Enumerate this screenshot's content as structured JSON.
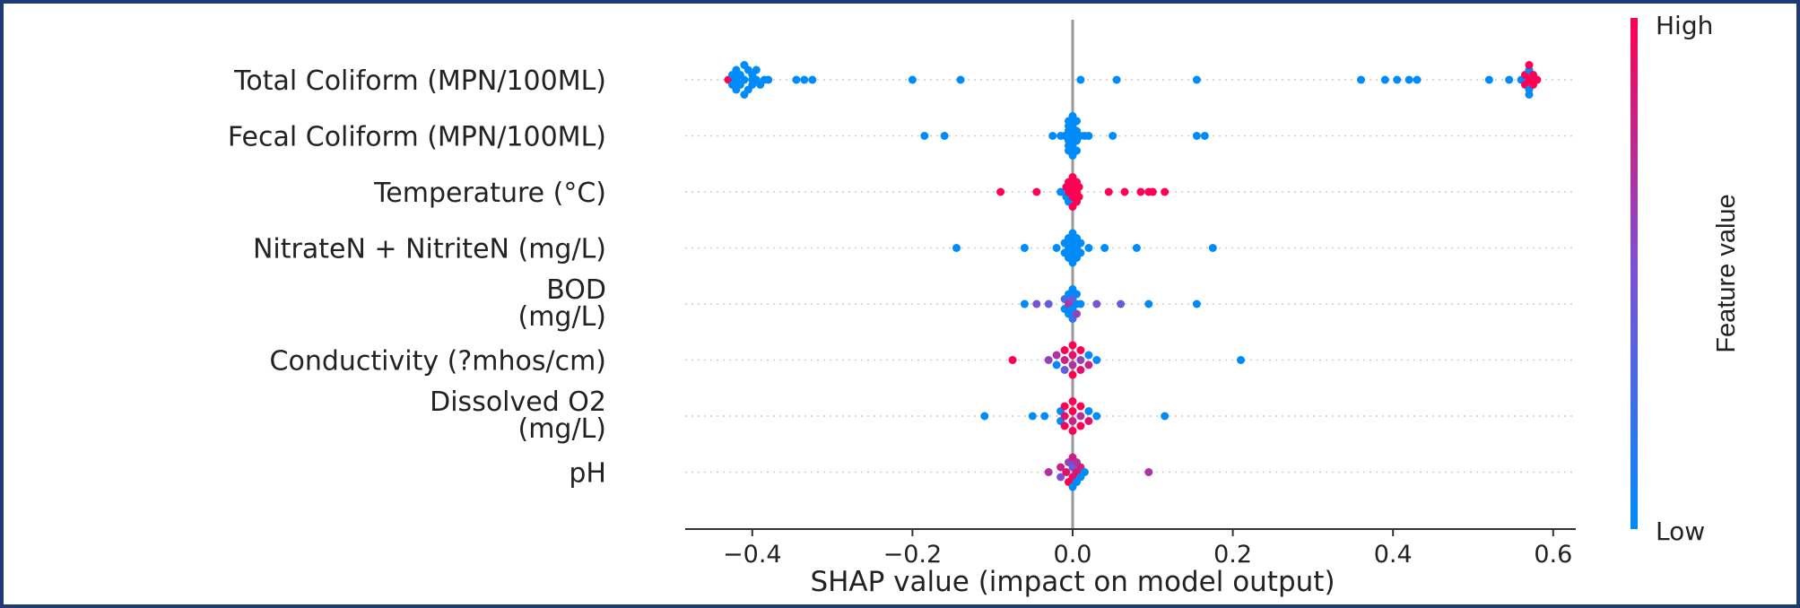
{
  "chart_data": {
    "type": "scatter",
    "subtype": "shap-beeswarm",
    "xlabel": "SHAP value (impact on model output)",
    "xlim": [
      -0.49,
      0.625
    ],
    "xticks": [
      -0.4,
      -0.2,
      0.0,
      0.2,
      0.4,
      0.6
    ],
    "xtick_labels": [
      "−0.4",
      "−0.2",
      "0.0",
      "0.2",
      "0.4",
      "0.6"
    ],
    "colorbar": {
      "title": "Feature value",
      "high_label": "High",
      "low_label": "Low",
      "low_color": "#008bfb",
      "high_color": "#ff0052"
    },
    "features": [
      {
        "name": "Total Coliform (MPN/100ML)",
        "lines": [
          "Total Coliform (MPN/100ML)"
        ],
        "points": [
          [
            -0.43,
            0.0,
            1
          ],
          [
            -0.425,
            -1.0,
            0
          ],
          [
            -0.425,
            1.0,
            0
          ],
          [
            -0.42,
            0.0,
            0
          ],
          [
            -0.42,
            -2.0,
            0
          ],
          [
            -0.42,
            2.0,
            0
          ],
          [
            -0.415,
            -1.0,
            0
          ],
          [
            -0.415,
            1.0,
            0
          ],
          [
            -0.41,
            0.0,
            0
          ],
          [
            -0.41,
            -3.0,
            0
          ],
          [
            -0.41,
            3.0,
            0
          ],
          [
            -0.405,
            -2.0,
            0
          ],
          [
            -0.405,
            2.0,
            0
          ],
          [
            -0.4,
            0.0,
            0
          ],
          [
            -0.4,
            -1.0,
            0
          ],
          [
            -0.4,
            1.0,
            0
          ],
          [
            -0.395,
            0.0,
            0
          ],
          [
            -0.395,
            -2.0,
            0
          ],
          [
            -0.39,
            1.0,
            0
          ],
          [
            -0.385,
            0.0,
            0
          ],
          [
            -0.38,
            0.0,
            0
          ],
          [
            -0.345,
            0.0,
            0
          ],
          [
            -0.335,
            0.0,
            0
          ],
          [
            -0.325,
            0.0,
            0
          ],
          [
            -0.2,
            0.0,
            0
          ],
          [
            -0.14,
            0.0,
            0
          ],
          [
            0.01,
            0.0,
            0
          ],
          [
            0.055,
            0.0,
            0
          ],
          [
            0.155,
            0.0,
            0
          ],
          [
            0.36,
            0.0,
            0
          ],
          [
            0.39,
            0.0,
            0
          ],
          [
            0.405,
            0.0,
            0
          ],
          [
            0.42,
            0.0,
            0
          ],
          [
            0.43,
            0.0,
            0
          ],
          [
            0.52,
            0.0,
            0
          ],
          [
            0.545,
            0.0,
            0
          ],
          [
            0.56,
            0.0,
            0
          ],
          [
            0.565,
            -1.0,
            1
          ],
          [
            0.565,
            1.0,
            1
          ],
          [
            0.57,
            0.0,
            1
          ],
          [
            0.57,
            -2.0,
            0
          ],
          [
            0.57,
            2.0,
            0
          ],
          [
            0.57,
            -3.0,
            1
          ],
          [
            0.57,
            3.0,
            0
          ],
          [
            0.575,
            -1.0,
            1
          ],
          [
            0.575,
            1.0,
            1
          ],
          [
            0.58,
            0.0,
            1
          ]
        ]
      },
      {
        "name": "Fecal Coliform (MPN/100ML)",
        "lines": [
          "Fecal Coliform (MPN/100ML)"
        ],
        "points": [
          [
            -0.185,
            0.0,
            0
          ],
          [
            -0.16,
            0.0,
            0
          ],
          [
            -0.025,
            0.0,
            0
          ],
          [
            -0.015,
            0.0,
            0
          ],
          [
            -0.01,
            0.0,
            0
          ],
          [
            -0.005,
            -3.0,
            0
          ],
          [
            -0.005,
            -2.0,
            0
          ],
          [
            -0.005,
            -1.0,
            0
          ],
          [
            -0.005,
            0.0,
            0
          ],
          [
            -0.005,
            1.0,
            0
          ],
          [
            -0.005,
            2.0,
            0
          ],
          [
            -0.005,
            3.0,
            0
          ],
          [
            0.0,
            -4.0,
            0
          ],
          [
            0.0,
            -2.0,
            0
          ],
          [
            0.0,
            0.0,
            0
          ],
          [
            0.0,
            2.0,
            0
          ],
          [
            0.0,
            4.0,
            0
          ],
          [
            0.005,
            -3.0,
            0
          ],
          [
            0.005,
            -1.0,
            0
          ],
          [
            0.005,
            1.0,
            0
          ],
          [
            0.005,
            3.0,
            0
          ],
          [
            0.01,
            0.0,
            0
          ],
          [
            0.015,
            0.0,
            0
          ],
          [
            0.02,
            0.0,
            0
          ],
          [
            0.05,
            0.0,
            0
          ],
          [
            0.155,
            0.0,
            0
          ],
          [
            0.165,
            0.0,
            0
          ]
        ]
      },
      {
        "name": "Temperature (°C)",
        "lines": [
          "Temperature (°C)"
        ],
        "points": [
          [
            -0.09,
            0.0,
            1
          ],
          [
            -0.045,
            0.0,
            1
          ],
          [
            -0.015,
            0.0,
            0
          ],
          [
            -0.008,
            -1.0,
            1
          ],
          [
            -0.008,
            1.0,
            0
          ],
          [
            -0.005,
            -2.0,
            1
          ],
          [
            -0.005,
            0.0,
            1
          ],
          [
            -0.005,
            2.0,
            0
          ],
          [
            0.0,
            -3.0,
            1
          ],
          [
            0.0,
            -1.0,
            1
          ],
          [
            0.0,
            1.0,
            1
          ],
          [
            0.0,
            3.0,
            1
          ],
          [
            0.005,
            -2.0,
            1
          ],
          [
            0.005,
            0.0,
            1
          ],
          [
            0.005,
            2.0,
            1
          ],
          [
            0.008,
            -1.0,
            1
          ],
          [
            0.008,
            1.0,
            1
          ],
          [
            0.045,
            0.0,
            1
          ],
          [
            0.065,
            0.0,
            1
          ],
          [
            0.085,
            0.0,
            1
          ],
          [
            0.095,
            0.0,
            1
          ],
          [
            0.1,
            0.0,
            1
          ],
          [
            0.115,
            0.0,
            1
          ]
        ]
      },
      {
        "name": "NitrateN + NitriteN (mg/L)",
        "lines": [
          "NitrateN + NitriteN (mg/L)"
        ],
        "points": [
          [
            -0.145,
            0.0,
            0
          ],
          [
            -0.06,
            0.0,
            0
          ],
          [
            -0.02,
            0.0,
            0
          ],
          [
            -0.01,
            -1.0,
            0
          ],
          [
            -0.01,
            1.0,
            0
          ],
          [
            -0.005,
            -2.0,
            0
          ],
          [
            -0.005,
            0.0,
            0
          ],
          [
            -0.005,
            2.0,
            0
          ],
          [
            0.0,
            -3.0,
            0
          ],
          [
            0.0,
            -1.0,
            0
          ],
          [
            0.0,
            1.0,
            0
          ],
          [
            0.0,
            3.0,
            0
          ],
          [
            0.005,
            -2.0,
            0
          ],
          [
            0.005,
            0.0,
            0
          ],
          [
            0.005,
            2.0,
            0
          ],
          [
            0.01,
            -1.0,
            0
          ],
          [
            0.01,
            1.0,
            0
          ],
          [
            0.02,
            0.0,
            0
          ],
          [
            0.04,
            0.0,
            0
          ],
          [
            0.08,
            0.0,
            0
          ],
          [
            0.175,
            0.0,
            0
          ]
        ]
      },
      {
        "name": "BOD (mg/L)",
        "lines": [
          "BOD",
          "(mg/L)"
        ],
        "points": [
          [
            -0.06,
            0.0,
            0
          ],
          [
            -0.045,
            0.0,
            0.5
          ],
          [
            -0.03,
            0.0,
            0.4
          ],
          [
            -0.01,
            -1.0,
            0.3
          ],
          [
            -0.01,
            1.0,
            0
          ],
          [
            -0.005,
            -2.0,
            0
          ],
          [
            -0.005,
            0.0,
            0.7
          ],
          [
            -0.005,
            2.0,
            0
          ],
          [
            0.0,
            -3.0,
            0
          ],
          [
            0.0,
            -1.0,
            0.5
          ],
          [
            0.0,
            1.0,
            0
          ],
          [
            0.0,
            3.0,
            0.2
          ],
          [
            0.005,
            -2.0,
            0
          ],
          [
            0.005,
            0.0,
            0
          ],
          [
            0.005,
            2.0,
            0.6
          ],
          [
            0.01,
            0.0,
            0
          ],
          [
            0.03,
            0.0,
            0.5
          ],
          [
            0.06,
            0.0,
            0.4
          ],
          [
            0.095,
            0.0,
            0
          ],
          [
            0.155,
            0.0,
            0
          ]
        ]
      },
      {
        "name": "Conductivity (?mhos/cm)",
        "lines": [
          "Conductivity (?mhos/cm)"
        ],
        "points": [
          [
            -0.075,
            0.0,
            1
          ],
          [
            -0.03,
            0.0,
            0.6
          ],
          [
            -0.02,
            -1.0,
            0.7
          ],
          [
            -0.02,
            1.0,
            0
          ],
          [
            -0.01,
            -2.0,
            1
          ],
          [
            -0.01,
            0.0,
            0.8
          ],
          [
            -0.01,
            2.0,
            0.4
          ],
          [
            0.0,
            -3.0,
            1
          ],
          [
            0.0,
            -1.0,
            0.9
          ],
          [
            0.0,
            1.0,
            0.7
          ],
          [
            0.0,
            3.0,
            1
          ],
          [
            0.01,
            -2.0,
            1
          ],
          [
            0.01,
            0.0,
            0.6
          ],
          [
            0.01,
            2.0,
            0.9
          ],
          [
            0.02,
            -1.0,
            0
          ],
          [
            0.02,
            1.0,
            0.8
          ],
          [
            0.03,
            0.0,
            0
          ],
          [
            0.21,
            0.0,
            0
          ]
        ]
      },
      {
        "name": "Dissolved O2 (mg/L)",
        "lines": [
          "Dissolved O2",
          "(mg/L)"
        ],
        "points": [
          [
            -0.11,
            0.0,
            0
          ],
          [
            -0.05,
            0.0,
            0
          ],
          [
            -0.035,
            0.0,
            0
          ],
          [
            -0.015,
            -1.0,
            0
          ],
          [
            -0.015,
            1.0,
            0
          ],
          [
            -0.01,
            -2.0,
            1
          ],
          [
            -0.01,
            0.0,
            0.9
          ],
          [
            -0.01,
            2.0,
            1
          ],
          [
            0.0,
            -3.0,
            1
          ],
          [
            0.0,
            -1.0,
            1
          ],
          [
            0.0,
            1.0,
            0.8
          ],
          [
            0.0,
            3.0,
            1
          ],
          [
            0.01,
            -2.0,
            1
          ],
          [
            0.01,
            0.0,
            0.7
          ],
          [
            0.01,
            2.0,
            1
          ],
          [
            0.02,
            -1.0,
            0
          ],
          [
            0.02,
            1.0,
            0.9
          ],
          [
            0.03,
            0.0,
            0
          ],
          [
            0.115,
            0.0,
            0
          ]
        ]
      },
      {
        "name": "pH",
        "lines": [
          "pH"
        ],
        "points": [
          [
            -0.03,
            0.0,
            0.7
          ],
          [
            -0.015,
            -1.0,
            0.8
          ],
          [
            -0.015,
            1.0,
            0.5
          ],
          [
            -0.008,
            0.0,
            0.9
          ],
          [
            -0.005,
            -2.0,
            0.6
          ],
          [
            -0.005,
            2.0,
            1
          ],
          [
            0.0,
            -3.0,
            0.8
          ],
          [
            0.0,
            -1.0,
            0.4
          ],
          [
            0.0,
            1.0,
            0.9
          ],
          [
            0.0,
            3.0,
            0
          ],
          [
            0.005,
            -2.0,
            0.7
          ],
          [
            0.005,
            0.0,
            0.9
          ],
          [
            0.005,
            2.0,
            0
          ],
          [
            0.01,
            -1.0,
            0.8
          ],
          [
            0.01,
            1.0,
            0
          ],
          [
            0.015,
            0.0,
            0
          ],
          [
            0.095,
            0.0,
            0.7
          ]
        ]
      }
    ]
  }
}
